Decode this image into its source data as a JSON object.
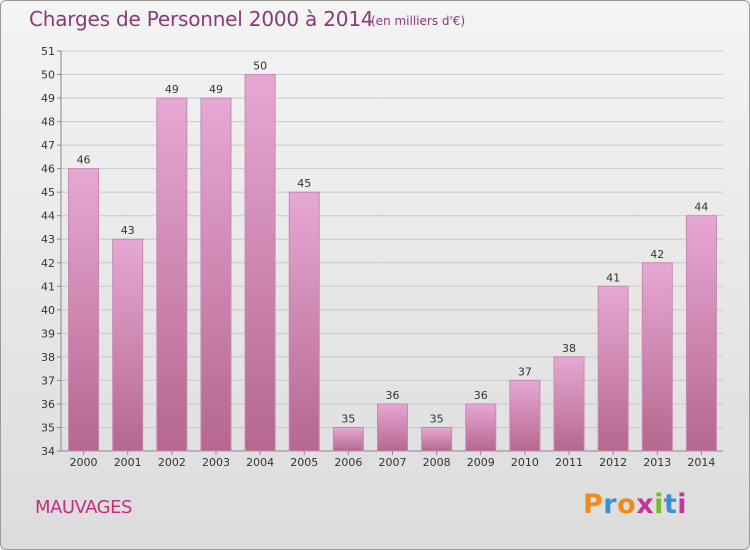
{
  "header": {
    "title": "Charges de Personnel 2000 à 2014",
    "subtitle": "(en milliers d'€)"
  },
  "footer": {
    "commune": "MAUVAGES",
    "brand": "Proxiti"
  },
  "colors": {
    "title": "#8a3a78",
    "commune": "#c0307f",
    "bar_top": "#e6a8d4",
    "bar_bottom": "#b5678f",
    "bar_side": "#c788b0",
    "brand_letters": [
      "#f08a1c",
      "#3a8fd8",
      "#f08a1c",
      "#c8329b",
      "#7ab829",
      "#3a8fd8",
      "#c8329b"
    ]
  },
  "chart_data": {
    "type": "bar",
    "categories": [
      "2000",
      "2001",
      "2002",
      "2003",
      "2004",
      "2005",
      "2006",
      "2007",
      "2008",
      "2009",
      "2010",
      "2011",
      "2012",
      "2013",
      "2014"
    ],
    "values": [
      46,
      43,
      49,
      49,
      50,
      45,
      35,
      36,
      35,
      36,
      37,
      38,
      41,
      42,
      44
    ],
    "title": "Charges de Personnel 2000 à 2014",
    "subtitle": "(en milliers d'€)",
    "ylim": [
      34,
      51
    ],
    "yticks": [
      34,
      35,
      36,
      37,
      38,
      39,
      40,
      41,
      42,
      43,
      44,
      45,
      46,
      47,
      48,
      49,
      50,
      51
    ],
    "grid": true,
    "legend": "none"
  }
}
